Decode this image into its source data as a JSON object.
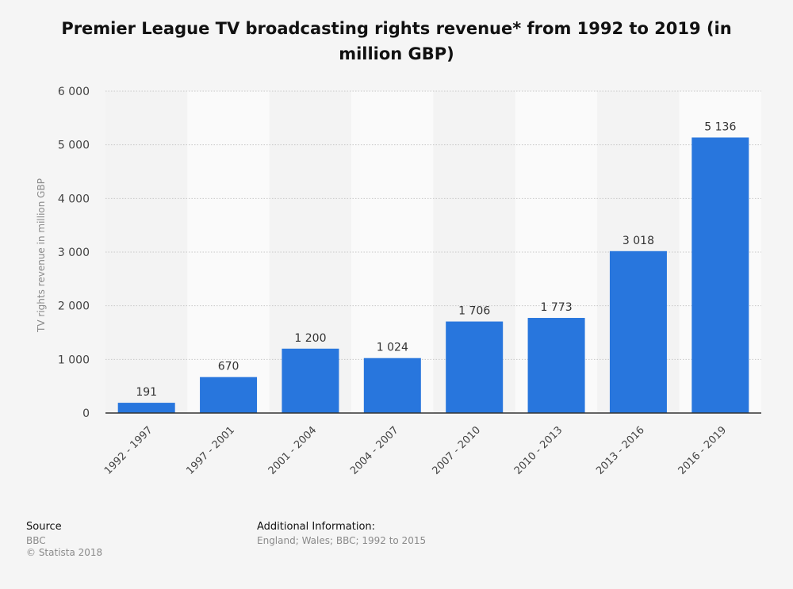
{
  "chart_data": {
    "type": "bar",
    "title": "Premier League TV broadcasting rights revenue* from 1992 to 2019 (in million GBP)",
    "xlabel": "",
    "ylabel": "TV rights revenue in million GBP",
    "categories": [
      "1992 - 1997",
      "1997 - 2001",
      "2001 - 2004",
      "2004 - 2007",
      "2007 - 2010",
      "2010 - 2013",
      "2013 - 2016",
      "2016 - 2019"
    ],
    "values": [
      191,
      670,
      1200,
      1024,
      1706,
      1773,
      3018,
      5136
    ],
    "value_labels": [
      "191",
      "670",
      "1 200",
      "1 024",
      "1 706",
      "1 773",
      "3 018",
      "5 136"
    ],
    "ylim": [
      0,
      6000
    ],
    "yticks": [
      0,
      1000,
      2000,
      3000,
      4000,
      5000,
      6000
    ],
    "ytick_labels": [
      "0",
      "1 000",
      "2 000",
      "3 000",
      "4 000",
      "5 000",
      "6 000"
    ],
    "grid": true,
    "legend": "none",
    "bar_color": "#2876dd"
  },
  "footer": {
    "source_heading": "Source",
    "source_name": "BBC",
    "copyright": "© Statista 2018",
    "additional_heading": "Additional Information:",
    "additional_text": "England; Wales; BBC; 1992 to 2015"
  }
}
